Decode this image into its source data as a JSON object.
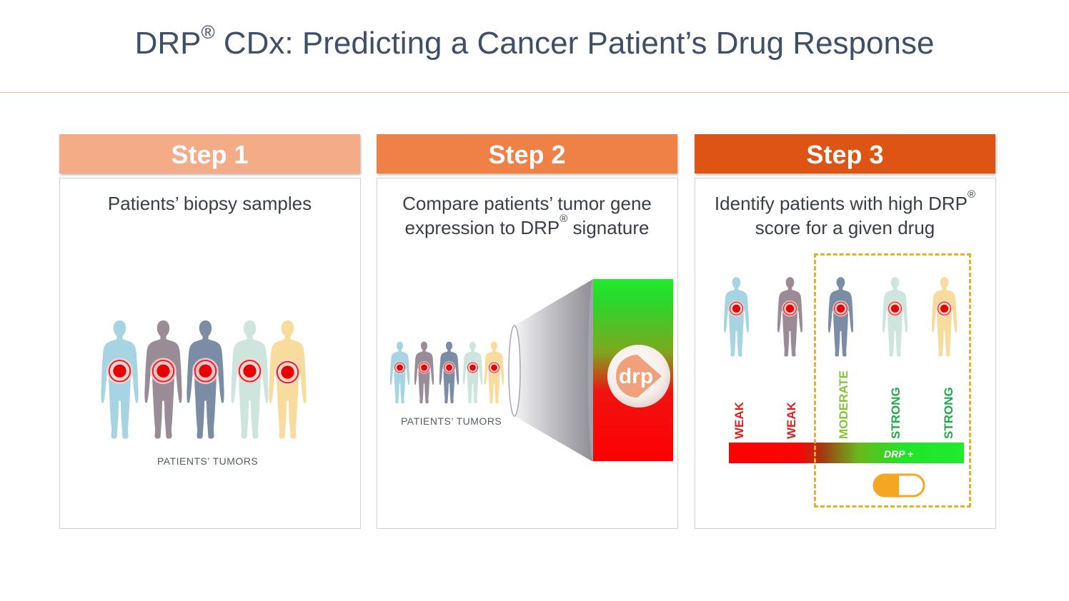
{
  "title": {
    "main": "DRP",
    "sup": "®",
    "rest": " CDx:  Predicting a Cancer Patient’s Drug Response"
  },
  "steps": [
    {
      "label": "Step 1",
      "color": "#f4ac87",
      "text_line1": "Patients’ biopsy samples"
    },
    {
      "label": "Step 2",
      "color": "#ef8146",
      "text_line1": "Compare patients’ tumor gene",
      "text_line2_pre": "expression to DRP",
      "text_line2_sup": "®",
      "text_line2_post": " signature"
    },
    {
      "label": "Step 3",
      "color": "#dd5414",
      "text_line1_pre": "Identify patients with high DRP",
      "text_line1_sup": "®",
      "text_line2": "score for a given drug"
    }
  ],
  "tumor_label_1": "PATIENTS’ TUMORS",
  "tumor_label_2": "PATIENTS’ TUMORS",
  "figure_colors": [
    "#a6d4e2",
    "#9a8c97",
    "#7b8da5",
    "#cde5dc",
    "#f8dc9d"
  ],
  "tumor_colors": {
    "ring": "#e42424",
    "core": "#e90000",
    "glow": "#fbd5d5"
  },
  "drp_logo_text": "drp",
  "scores": [
    {
      "label": "WEAK",
      "color": "#d92424"
    },
    {
      "label": "WEAK",
      "color": "#d92424"
    },
    {
      "label": "MODERATE",
      "color": "#86c23b"
    },
    {
      "label": "STRONG",
      "color": "#20a84a"
    },
    {
      "label": "STRONG",
      "color": "#20a84a"
    }
  ],
  "bar_label": "DRP +",
  "pill_color": "#f5a623",
  "dash_color": "#e4b324"
}
